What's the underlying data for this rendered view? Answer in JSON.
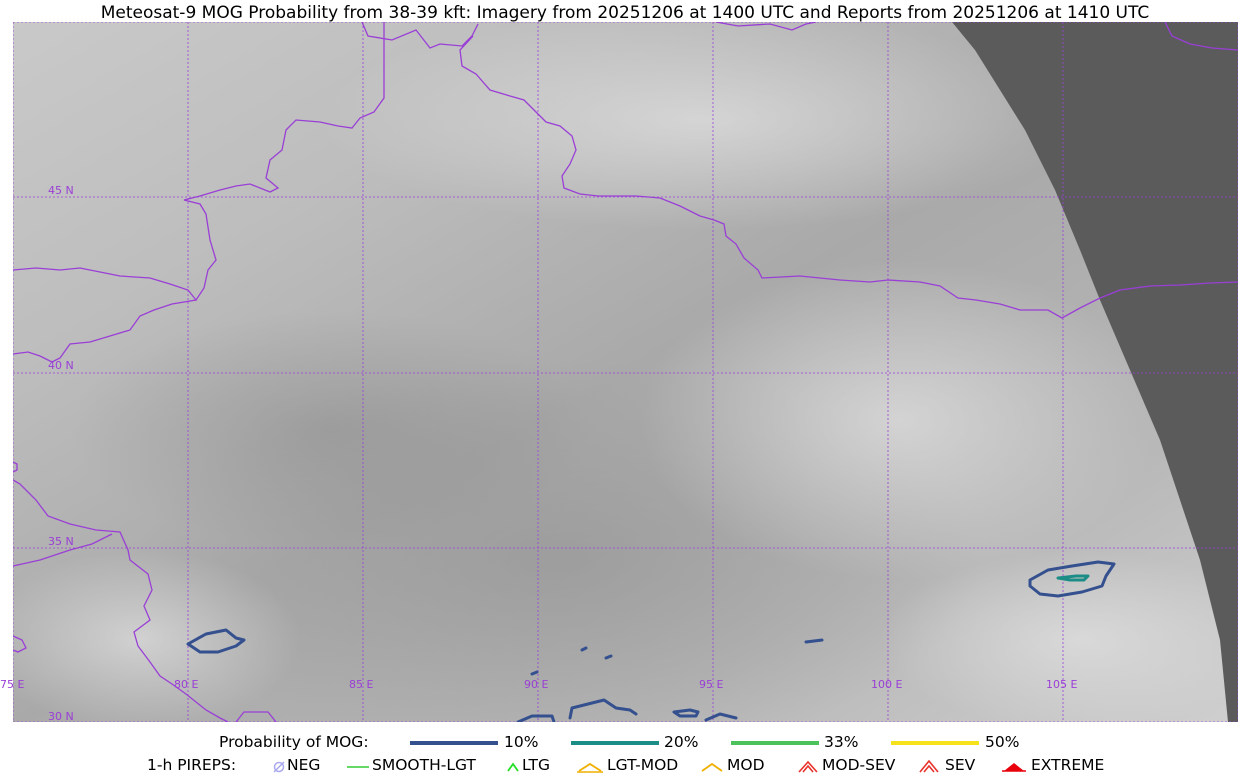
{
  "title": "Meteosat-9 MOG Probability from 38-39 kft: Imagery from 20251206 at 1400 UTC and Reports from 20251206 at 1410 UTC",
  "colors": {
    "grid": "#9a3fd6",
    "border": "#9a3fd6",
    "space": "#5b5b5b",
    "p10": "#34508e",
    "p20": "#1c8c86",
    "p33": "#4cc35a",
    "p50": "#f5e11c"
  },
  "grid_labels": {
    "lon": [
      "75 E",
      "80 E",
      "85 E",
      "90 E",
      "95 E",
      "100 E",
      "105 E"
    ],
    "lat": [
      "45 N",
      "40 N",
      "35 N",
      "30 N"
    ]
  },
  "legend": {
    "prob_title": "Probability of MOG:",
    "prob_items": [
      {
        "label": "10%",
        "color": "#34508e"
      },
      {
        "label": "20%",
        "color": "#1c8c86"
      },
      {
        "label": "33%",
        "color": "#4cc35a"
      },
      {
        "label": "50%",
        "color": "#f5e11c"
      }
    ],
    "pirep_title": "1-h PIREPS:",
    "pirep_items": [
      {
        "label": "NEG",
        "icon": "neg-icon",
        "color": "#a9a9f0"
      },
      {
        "label": "SMOOTH-LGT",
        "icon": "smooth-lgt-icon",
        "color": "#33cc33"
      },
      {
        "label": "LTG",
        "icon": "ltg-icon",
        "color": "#22dd22"
      },
      {
        "label": "LGT-MOD",
        "icon": "lgt-mod-icon",
        "color": "#f0b000"
      },
      {
        "label": "MOD",
        "icon": "mod-icon",
        "color": "#f0b000"
      },
      {
        "label": "MOD-SEV",
        "icon": "mod-sev-icon",
        "color": "#e8322b"
      },
      {
        "label": "SEV",
        "icon": "sev-icon",
        "color": "#e8322b"
      },
      {
        "label": "EXTREME",
        "icon": "extreme-icon",
        "color": "#e8000b"
      }
    ]
  }
}
